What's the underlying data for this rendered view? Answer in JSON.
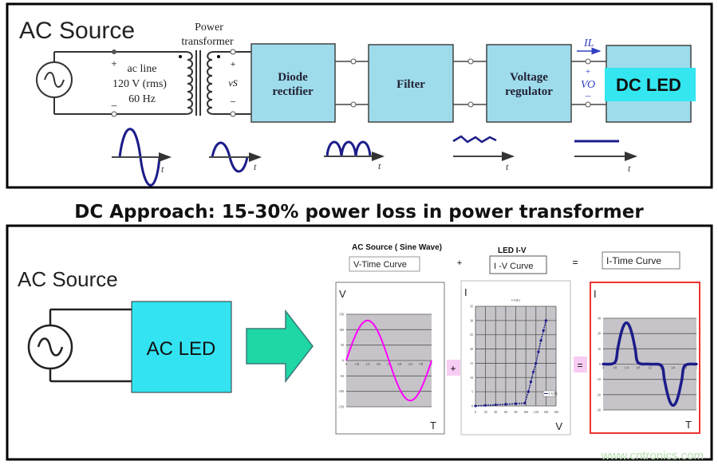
{
  "top_panel": {
    "heading": "AC Source",
    "transformer_label": [
      "Power",
      "transformer"
    ],
    "ac_line_labels": [
      "ac line",
      "120 V (rms)",
      "60 Hz"
    ],
    "primary_plus": "+",
    "primary_minus": "–",
    "secondary_plus": "+",
    "secondary_label": "vS",
    "secondary_minus": "–",
    "blocks": [
      {
        "lines": [
          "Diode",
          "rectifier"
        ]
      },
      {
        "lines": [
          "Filter"
        ]
      },
      {
        "lines": [
          "Voltage",
          "regulator"
        ]
      }
    ],
    "output_current": "IL",
    "output_plus": "+",
    "output_voltage": "VO",
    "output_minus": "–",
    "load_label": "DC LED",
    "time_axis_label": "t",
    "colors": {
      "block_fill": "#9edcec",
      "load_label_fill": "#33e6f0",
      "waveform": "#1c1c8a"
    }
  },
  "caption": "DC Approach: 15-30% power loss in power transformer",
  "bottom_panel": {
    "heading": "AC Source",
    "load_label": "AC LED",
    "source_title": "AC Source ( Sine Wave)",
    "source_box": "V-Time Curve",
    "plus": "+",
    "led_title": "LED I-V",
    "led_box": "I -V Curve",
    "equals": "=",
    "result_box": "I-Time Curve",
    "colors": {
      "load_fill": "#33e3f2",
      "arrow_fill": "#1ed7a4",
      "highlight_border": "#ee3333",
      "operator_fill": "#f7ccf3"
    }
  },
  "watermark": "www.cntronics.com",
  "chart_data": [
    {
      "type": "line",
      "corner_labels": {
        "y": "V",
        "x": "T"
      },
      "color": "#ff00ff",
      "ylim": [
        -150,
        150
      ],
      "xlim": [
        0,
        1
      ],
      "yticks": [
        "150",
        "100",
        "50",
        "0",
        "-50",
        "-100",
        "-150"
      ],
      "xticks": [
        "0",
        "1/8",
        "1/4",
        "3/8",
        "1/2",
        "5/8",
        "3/4",
        "7/8",
        "1"
      ],
      "grid": true,
      "x": [
        0,
        0.0625,
        0.125,
        0.1875,
        0.25,
        0.3125,
        0.375,
        0.4375,
        0.5,
        0.5625,
        0.625,
        0.6875,
        0.75,
        0.8125,
        0.875,
        0.9375,
        1
      ],
      "y": [
        0,
        50,
        92,
        120,
        130,
        120,
        92,
        50,
        0,
        -50,
        -92,
        -120,
        -130,
        -120,
        -92,
        -50,
        0
      ]
    },
    {
      "type": "line",
      "title": "I-V(F)",
      "legend": "I-V(F)",
      "corner_labels": {
        "y": "I",
        "x": "V"
      },
      "color": "#1c1c8a",
      "ylim": [
        0,
        35
      ],
      "xlim": [
        0,
        160
      ],
      "yticks": [
        "35",
        "30",
        "25",
        "20",
        "15",
        "10",
        "5",
        "0"
      ],
      "xticks": [
        "0",
        "20",
        "40",
        "60",
        "80",
        "100",
        "120",
        "140",
        "160"
      ],
      "grid": true,
      "x": [
        0,
        20,
        40,
        60,
        80,
        98,
        105,
        110,
        115,
        120,
        125,
        130,
        135,
        140
      ],
      "y": [
        0,
        0.2,
        0.4,
        0.6,
        0.8,
        1,
        5,
        8.5,
        12,
        15,
        19,
        23,
        26.5,
        30
      ]
    },
    {
      "type": "line",
      "corner_labels": {
        "y": "I",
        "x": "T"
      },
      "color": "#1c1c8a",
      "ylim": [
        -30,
        30
      ],
      "xlim": [
        0,
        1
      ],
      "yticks": [
        "30",
        "20",
        "10",
        "0",
        "-10",
        "-20",
        "-30"
      ],
      "xticks": [
        "0",
        "1/8",
        "1/4",
        "3/8",
        "1/2",
        "5/8",
        "3/4",
        "7/8",
        "1"
      ],
      "grid": true,
      "x": [
        0,
        0.125,
        0.15625,
        0.1875,
        0.21875,
        0.25,
        0.28125,
        0.3125,
        0.34375,
        0.375,
        0.5,
        0.625,
        0.65625,
        0.6875,
        0.71875,
        0.75,
        0.78125,
        0.8125,
        0.84375,
        0.875,
        1
      ],
      "y": [
        0,
        1,
        10,
        19,
        25,
        27,
        25,
        19,
        10,
        1,
        0,
        -1,
        -10,
        -19,
        -25,
        -27,
        -25,
        -19,
        -10,
        -1,
        0
      ]
    }
  ]
}
